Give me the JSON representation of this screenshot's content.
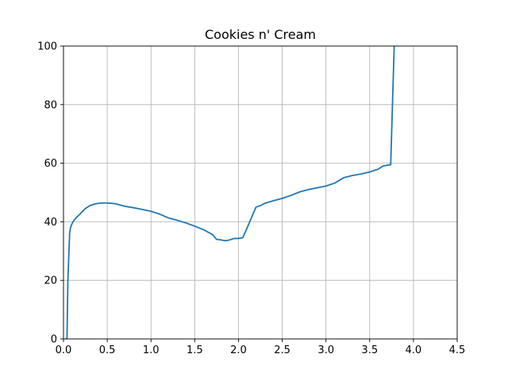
{
  "chart_data": {
    "type": "line",
    "title": "Cookies n' Cream",
    "xlabel": "",
    "ylabel": "",
    "xlim": [
      0,
      4.5
    ],
    "ylim": [
      0,
      100
    ],
    "xticks": [
      0.0,
      0.5,
      1.0,
      1.5,
      2.0,
      2.5,
      3.0,
      3.5,
      4.0,
      4.5
    ],
    "xtick_labels": [
      "0.0",
      "0.5",
      "1.0",
      "1.5",
      "2.0",
      "2.5",
      "3.0",
      "3.5",
      "4.0",
      "4.5"
    ],
    "yticks": [
      0,
      20,
      40,
      60,
      80,
      100
    ],
    "ytick_labels": [
      "0",
      "20",
      "40",
      "60",
      "80",
      "100"
    ],
    "grid": true,
    "colors": {
      "line": "#1f77b4",
      "grid": "#b0b0b0",
      "axis": "#000000"
    },
    "series": [
      {
        "x": [
          0.02,
          0.04,
          0.05,
          0.07,
          0.08,
          0.1,
          0.12,
          0.15,
          0.2,
          0.25,
          0.3,
          0.35,
          0.4,
          0.45,
          0.5,
          0.55,
          0.6,
          0.65,
          0.7,
          0.8,
          0.9,
          1.0,
          1.1,
          1.2,
          1.3,
          1.4,
          1.5,
          1.6,
          1.7,
          1.75,
          1.8,
          1.85,
          1.9,
          1.95,
          2.0,
          2.05,
          2.1,
          2.15,
          2.2,
          2.25,
          2.3,
          2.4,
          2.5,
          2.6,
          2.7,
          2.8,
          2.9,
          3.0,
          3.1,
          3.2,
          3.3,
          3.4,
          3.5,
          3.6,
          3.65,
          3.7,
          3.74,
          3.76,
          3.78
        ],
        "y": [
          0,
          0,
          20,
          36,
          38,
          39.5,
          40.5,
          41.5,
          43,
          44.5,
          45.5,
          46,
          46.3,
          46.4,
          46.4,
          46.3,
          46.1,
          45.7,
          45.3,
          44.8,
          44.2,
          43.6,
          42.6,
          41.3,
          40.5,
          39.6,
          38.5,
          37.3,
          35.7,
          34,
          33.8,
          33.5,
          33.8,
          34.3,
          34.3,
          34.6,
          38,
          41.5,
          45,
          45.5,
          46.3,
          47.2,
          48,
          49,
          50.2,
          51,
          51.6,
          52.2,
          53.2,
          55,
          55.8,
          56.3,
          57,
          58,
          59,
          59.3,
          59.5,
          80,
          100
        ]
      }
    ]
  }
}
